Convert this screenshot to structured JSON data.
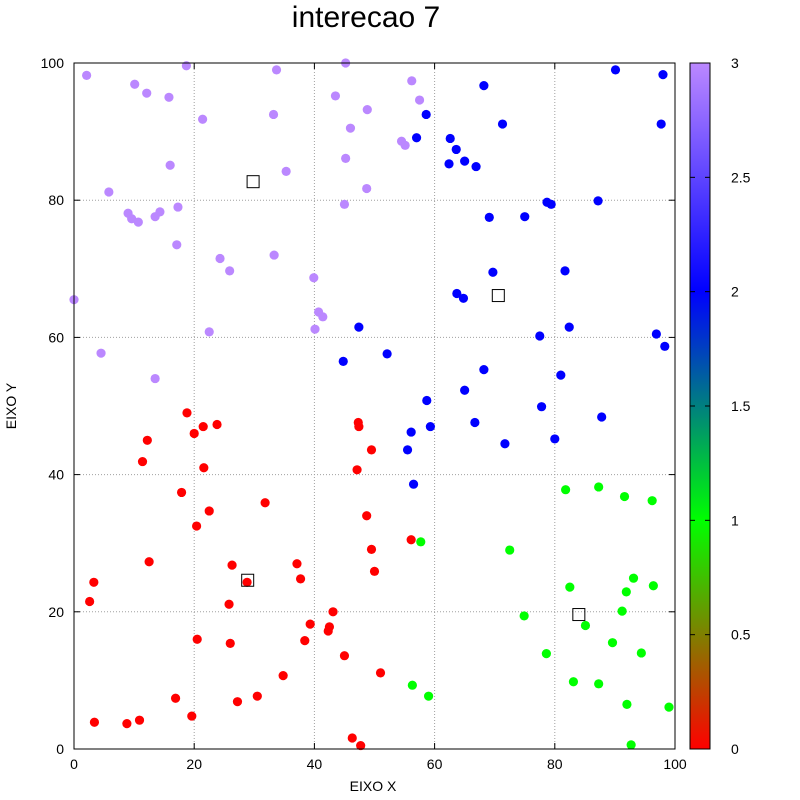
{
  "chart_data": {
    "type": "scatter",
    "title": "interecao 7",
    "xlabel": "EIXO X",
    "ylabel": "EIXO Y",
    "xlim": [
      0,
      100
    ],
    "ylim": [
      0,
      100
    ],
    "xticks": [
      "0",
      "20",
      "40",
      "60",
      "80",
      "100"
    ],
    "yticks": [
      "0",
      "20",
      "40",
      "60",
      "80",
      "100"
    ],
    "grid": true,
    "colorbar": {
      "range": [
        0,
        3
      ],
      "ticks": [
        "0",
        "0.5",
        "1",
        "1.5",
        "2",
        "2.5",
        "3"
      ],
      "palette": [
        "#ff0000",
        "#00ff00",
        "#0000ff",
        "#bb88ff"
      ]
    },
    "cluster_colors": {
      "0": "#ff0000",
      "1": "#00ff00",
      "2": "#0000ff",
      "3": "#bb88ff"
    },
    "series": [
      {
        "cluster": 0,
        "points": [
          [
            18.8,
            49
          ],
          [
            20,
            46
          ],
          [
            21.5,
            47
          ],
          [
            23.8,
            47.3
          ],
          [
            12.2,
            45
          ],
          [
            11.4,
            41.9
          ],
          [
            21.6,
            41
          ],
          [
            17.9,
            37.4
          ],
          [
            22.5,
            34.7
          ],
          [
            20.4,
            32.5
          ],
          [
            31.8,
            35.9
          ],
          [
            12.5,
            27.3
          ],
          [
            26.3,
            26.8
          ],
          [
            28.8,
            24.3
          ],
          [
            37.1,
            27
          ],
          [
            37.7,
            24.8
          ],
          [
            25.8,
            21.1
          ],
          [
            2.6,
            21.5
          ],
          [
            3.3,
            24.3
          ],
          [
            47.3,
            47.6
          ],
          [
            47.4,
            47
          ],
          [
            49.5,
            43.6
          ],
          [
            47.1,
            40.7
          ],
          [
            48.7,
            34
          ],
          [
            49.5,
            29.1
          ],
          [
            50,
            25.9
          ],
          [
            56.1,
            30.5
          ],
          [
            43.1,
            20
          ],
          [
            39.3,
            18.2
          ],
          [
            42.5,
            17.8
          ],
          [
            42.3,
            17.2
          ],
          [
            38.4,
            15.8
          ],
          [
            45,
            13.6
          ],
          [
            51,
            11.1
          ],
          [
            34.8,
            10.7
          ],
          [
            20.5,
            16
          ],
          [
            26,
            15.4
          ],
          [
            30.5,
            7.7
          ],
          [
            27.2,
            6.9
          ],
          [
            16.9,
            7.4
          ],
          [
            19.6,
            4.8
          ],
          [
            10.9,
            4.2
          ],
          [
            8.8,
            3.7
          ],
          [
            3.4,
            3.9
          ],
          [
            46.3,
            1.6
          ],
          [
            47.7,
            0.5
          ]
        ]
      },
      {
        "cluster": 1,
        "points": [
          [
            57.7,
            30.2
          ],
          [
            72.5,
            29
          ],
          [
            81.8,
            37.8
          ],
          [
            87.3,
            38.2
          ],
          [
            91.6,
            36.8
          ],
          [
            96.2,
            36.2
          ],
          [
            74.9,
            19.4
          ],
          [
            82.5,
            23.6
          ],
          [
            85.1,
            18
          ],
          [
            91.2,
            20.1
          ],
          [
            91.9,
            22.9
          ],
          [
            93.1,
            24.9
          ],
          [
            96.4,
            23.8
          ],
          [
            78.6,
            13.9
          ],
          [
            89.6,
            15.5
          ],
          [
            94.4,
            14
          ],
          [
            83.1,
            9.8
          ],
          [
            87.3,
            9.5
          ],
          [
            56.3,
            9.3
          ],
          [
            59,
            7.7
          ],
          [
            92,
            6.5
          ],
          [
            99,
            6.1
          ],
          [
            92.7,
            0.6
          ]
        ]
      },
      {
        "cluster": 2,
        "points": [
          [
            90.1,
            99
          ],
          [
            98,
            98.3
          ],
          [
            68.2,
            96.7
          ],
          [
            58.6,
            92.5
          ],
          [
            71.3,
            91.1
          ],
          [
            97.7,
            91.1
          ],
          [
            57,
            89.1
          ],
          [
            62.6,
            89
          ],
          [
            63.6,
            87.4
          ],
          [
            62.4,
            85.3
          ],
          [
            65,
            85.7
          ],
          [
            66.9,
            84.9
          ],
          [
            78.7,
            79.7
          ],
          [
            79.4,
            79.4
          ],
          [
            87.2,
            79.9
          ],
          [
            69.1,
            77.5
          ],
          [
            75,
            77.6
          ],
          [
            69.7,
            69.5
          ],
          [
            81.7,
            69.7
          ],
          [
            63.7,
            66.4
          ],
          [
            64.8,
            65.7
          ],
          [
            47.4,
            61.5
          ],
          [
            82.4,
            61.5
          ],
          [
            77.5,
            60.2
          ],
          [
            96.9,
            60.5
          ],
          [
            98.3,
            58.7
          ],
          [
            52.1,
            57.6
          ],
          [
            44.8,
            56.5
          ],
          [
            68.2,
            55.3
          ],
          [
            81,
            54.5
          ],
          [
            65,
            52.3
          ],
          [
            58.7,
            50.8
          ],
          [
            77.8,
            49.9
          ],
          [
            87.8,
            48.4
          ],
          [
            66.7,
            47.6
          ],
          [
            59.3,
            47
          ],
          [
            56.1,
            46.2
          ],
          [
            80,
            45.2
          ],
          [
            71.7,
            44.5
          ],
          [
            55.5,
            43.6
          ],
          [
            56.5,
            38.6
          ]
        ]
      },
      {
        "cluster": 3,
        "points": [
          [
            18.7,
            99.6
          ],
          [
            2.1,
            98.2
          ],
          [
            33.7,
            99
          ],
          [
            45.2,
            100
          ],
          [
            10.1,
            96.9
          ],
          [
            12.1,
            95.6
          ],
          [
            15.8,
            95
          ],
          [
            56.2,
            97.4
          ],
          [
            43.5,
            95.2
          ],
          [
            57.5,
            94.6
          ],
          [
            48.8,
            93.2
          ],
          [
            21.4,
            91.8
          ],
          [
            33.2,
            92.5
          ],
          [
            46,
            90.5
          ],
          [
            54.5,
            88.6
          ],
          [
            55.1,
            88
          ],
          [
            45.2,
            86.1
          ],
          [
            16,
            85.1
          ],
          [
            35.3,
            84.2
          ],
          [
            5.8,
            81.2
          ],
          [
            48.7,
            81.7
          ],
          [
            9,
            78.1
          ],
          [
            9.6,
            77.3
          ],
          [
            10.7,
            76.8
          ],
          [
            14.3,
            78.3
          ],
          [
            13.5,
            77.6
          ],
          [
            17.3,
            79
          ],
          [
            45,
            79.4
          ],
          [
            17.1,
            73.5
          ],
          [
            24.3,
            71.5
          ],
          [
            33.3,
            72
          ],
          [
            25.9,
            69.7
          ],
          [
            39.9,
            68.7
          ],
          [
            0,
            65.5
          ],
          [
            40.7,
            63.7
          ],
          [
            41.4,
            63
          ],
          [
            22.5,
            60.8
          ],
          [
            40.1,
            61.2
          ],
          [
            4.5,
            57.7
          ],
          [
            13.5,
            54
          ]
        ]
      }
    ],
    "centroids": [
      [
        29.8,
        82.7
      ],
      [
        70.6,
        66.1
      ],
      [
        28.9,
        24.6
      ],
      [
        84,
        19.6
      ]
    ]
  }
}
